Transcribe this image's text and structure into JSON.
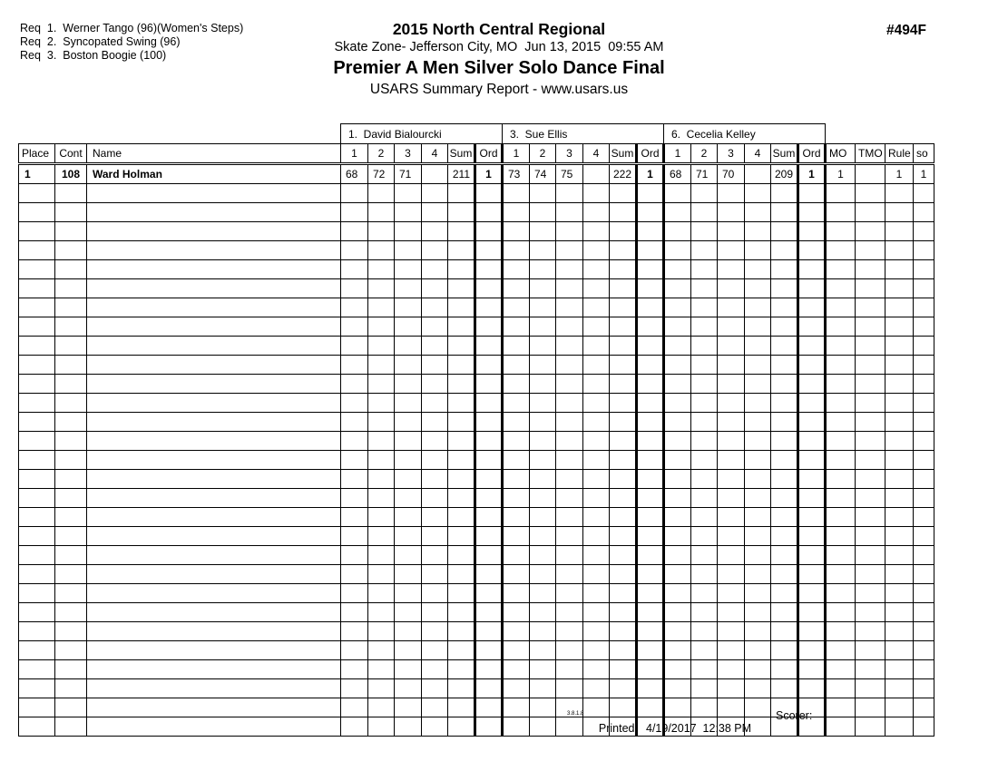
{
  "report": {
    "requirements": [
      "Req  1.  Werner Tango (96)(Women's Steps)",
      "Req  2.  Syncopated Swing (96)",
      "Req  3.  Boston Boogie (100)"
    ],
    "event_title": "2015 North Central Regional",
    "venue_line": "Skate Zone- Jefferson City, MO  Jun 13, 2015  09:55 AM",
    "division_title": "Premier A Men Silver Solo Dance Final",
    "report_type": "USARS Summary Report - www.usars.us",
    "event_number": "#494F"
  },
  "table": {
    "judges": [
      "1.  David Bialourcki",
      "3.  Sue Ellis",
      "6.  Cecelia Kelley"
    ],
    "left_headers": [
      "Place",
      "Cont",
      "Name"
    ],
    "score_headers": [
      "1",
      "2",
      "3",
      "4",
      "Sum",
      "Ord"
    ],
    "right_headers": [
      "MO",
      "TMO",
      "Rule",
      "so"
    ],
    "rows": [
      {
        "place": "1",
        "cont": "108",
        "name": "Ward Holman",
        "judges": [
          [
            "68",
            "72",
            "71",
            "",
            "211",
            "1"
          ],
          [
            "73",
            "74",
            "75",
            "",
            "222",
            "1"
          ],
          [
            "68",
            "71",
            "70",
            "",
            "209",
            "1"
          ]
        ],
        "mo": "1",
        "tmo": "",
        "rule": "1",
        "so": "1"
      }
    ],
    "empty_row_count": 29
  },
  "footer": {
    "version": "3.8.1.8",
    "printed_label": "Printed:",
    "printed_value": "4/19/2017  12:38 PM",
    "scorer_label": "Scorer:"
  }
}
